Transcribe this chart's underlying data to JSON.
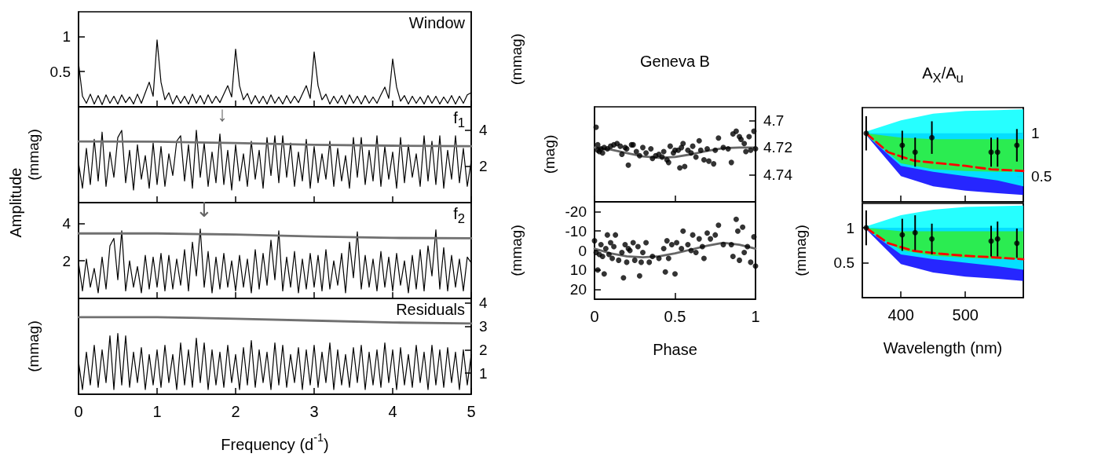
{
  "chart_data": [
    {
      "type": "line",
      "title": "Window",
      "y2label": "(mmag)",
      "xlim": [
        0,
        5
      ],
      "xticks": [
        0,
        1,
        2,
        3,
        4,
        5
      ],
      "ylim": [
        0,
        1.35
      ],
      "yticks": [
        0.5,
        1
      ],
      "grid": false,
      "tick_labels": "y",
      "x": [
        0,
        0.05,
        0.1,
        0.15,
        0.2,
        0.25,
        0.3,
        0.35,
        0.4,
        0.45,
        0.5,
        0.55,
        0.6,
        0.65,
        0.7,
        0.75,
        0.8,
        0.85,
        0.9,
        0.95,
        1,
        1.05,
        1.1,
        1.15,
        1.2,
        1.25,
        1.3,
        1.35,
        1.4,
        1.45,
        1.5,
        1.55,
        1.6,
        1.65,
        1.7,
        1.75,
        1.8,
        1.85,
        1.9,
        1.95,
        2,
        2.05,
        2.1,
        2.15,
        2.2,
        2.25,
        2.3,
        2.35,
        2.4,
        2.45,
        2.5,
        2.55,
        2.6,
        2.65,
        2.7,
        2.75,
        2.8,
        2.85,
        2.9,
        2.95,
        3,
        3.05,
        3.1,
        3.15,
        3.2,
        3.25,
        3.3,
        3.35,
        3.4,
        3.45,
        3.5,
        3.55,
        3.6,
        3.65,
        3.7,
        3.75,
        3.8,
        3.85,
        3.9,
        3.95,
        4,
        4.05,
        4.1,
        4.15,
        4.2,
        4.25,
        4.3,
        4.35,
        4.4,
        4.45,
        4.5,
        4.55,
        4.6,
        4.65,
        4.7,
        4.75,
        4.8,
        4.85,
        4.9,
        4.95,
        5
      ],
      "series": [
        {
          "color": "#000000",
          "marker": "none",
          "values": [
            0.62,
            0.15,
            0.05,
            0.18,
            0.04,
            0.16,
            0.03,
            0.17,
            0.05,
            0.15,
            0.04,
            0.17,
            0.06,
            0.14,
            0.04,
            0.18,
            0.05,
            0.2,
            0.35,
            0.15,
            0.95,
            0.35,
            0.1,
            0.2,
            0.04,
            0.16,
            0.05,
            0.15,
            0.04,
            0.18,
            0.05,
            0.16,
            0.04,
            0.17,
            0.05,
            0.15,
            0.06,
            0.18,
            0.3,
            0.14,
            0.82,
            0.3,
            0.1,
            0.19,
            0.04,
            0.16,
            0.05,
            0.15,
            0.04,
            0.17,
            0.05,
            0.14,
            0.04,
            0.16,
            0.05,
            0.15,
            0.06,
            0.18,
            0.3,
            0.12,
            0.78,
            0.3,
            0.1,
            0.18,
            0.04,
            0.15,
            0.05,
            0.16,
            0.04,
            0.17,
            0.05,
            0.15,
            0.04,
            0.16,
            0.05,
            0.14,
            0.05,
            0.17,
            0.28,
            0.12,
            0.68,
            0.28,
            0.08,
            0.16,
            0.04,
            0.15,
            0.05,
            0.14,
            0.04,
            0.16,
            0.05,
            0.15,
            0.04,
            0.14,
            0.05,
            0.16,
            0.04,
            0.15,
            0.05,
            0.17,
            0.2
          ]
        }
      ]
    },
    {
      "type": "line",
      "title": "f$_{1}$",
      "ylabel": "(mmag)",
      "xlim": [
        0,
        5
      ],
      "xticks": [
        0,
        1,
        2,
        3,
        4,
        5
      ],
      "y2lim": [
        0,
        5.3
      ],
      "y2ticks": [
        2,
        4
      ],
      "grid": false,
      "tick_labels": "y",
      "annotations": [
        "Amplitude",
        "↓"
      ],
      "x": [
        0,
        0.05,
        0.1,
        0.15,
        0.2,
        0.25,
        0.3,
        0.35,
        0.4,
        0.45,
        0.5,
        0.55,
        0.6,
        0.65,
        0.7,
        0.75,
        0.8,
        0.85,
        0.9,
        0.95,
        1,
        1.05,
        1.1,
        1.15,
        1.2,
        1.25,
        1.3,
        1.35,
        1.4,
        1.45,
        1.5,
        1.55,
        1.6,
        1.65,
        1.7,
        1.75,
        1.8,
        1.85,
        1.9,
        1.95,
        2,
        2.05,
        2.1,
        2.15,
        2.2,
        2.25,
        2.3,
        2.35,
        2.4,
        2.45,
        2.5,
        2.55,
        2.6,
        2.65,
        2.7,
        2.75,
        2.8,
        2.85,
        2.9,
        2.95,
        3,
        3.05,
        3.1,
        3.15,
        3.2,
        3.25,
        3.3,
        3.35,
        3.4,
        3.45,
        3.5,
        3.55,
        3.6,
        3.65,
        3.7,
        3.75,
        3.8,
        3.85,
        3.9,
        3.95,
        4,
        4.05,
        4.1,
        4.15,
        4.2,
        4.25,
        4.3,
        4.35,
        4.4,
        4.45,
        4.5,
        4.55,
        4.6,
        4.65,
        4.7,
        4.75,
        4.8,
        4.85,
        4.9,
        4.95,
        5
      ],
      "series": [
        {
          "color": "#000000",
          "marker": "none",
          "axis": "y2",
          "values": [
            2.2,
            0.8,
            3.0,
            1.0,
            3.5,
            1.2,
            3.9,
            0.9,
            2.8,
            1.4,
            3.6,
            4.0,
            1.1,
            2.9,
            0.7,
            3.2,
            1.3,
            2.6,
            0.8,
            3.3,
            1.0,
            3.1,
            0.9,
            2.7,
            1.5,
            3.4,
            3.7,
            1.2,
            3.2,
            0.8,
            4.0,
            1.4,
            3.3,
            0.9,
            2.8,
            1.1,
            3.8,
            1.0,
            2.9,
            0.7,
            3.2,
            1.2,
            2.7,
            0.9,
            3.4,
            1.3,
            2.9,
            0.8,
            3.6,
            1.5,
            3.7,
            1.1,
            3.7,
            1.4,
            3.3,
            0.9,
            2.8,
            1.2,
            3.5,
            0.8,
            3.1,
            1.1,
            2.7,
            1.3,
            3.4,
            0.9,
            3.0,
            1.2,
            2.6,
            0.8,
            3.6,
            1.4,
            3.6,
            1.0,
            2.9,
            1.2,
            3.7,
            0.9,
            3.1,
            1.3,
            2.8,
            0.8,
            3.6,
            1.1,
            3.2,
            1.4,
            2.7,
            0.9,
            3.7,
            1.2,
            3.4,
            1.0,
            3.7,
            0.8,
            2.9,
            1.3,
            3.7,
            1.1,
            3.0,
            0.9,
            2.3
          ]
        },
        {
          "color": "#707070",
          "marker": "none",
          "axis": "y2",
          "x": [
            0,
            1,
            2,
            3,
            4,
            5
          ],
          "values": [
            3.38,
            3.37,
            3.3,
            3.2,
            3.15,
            3.12
          ]
        }
      ]
    },
    {
      "type": "line",
      "title": "f$_{2}$",
      "y2label": "(mmag)",
      "xlim": [
        0,
        5
      ],
      "xticks": [
        0,
        1,
        2,
        3,
        4,
        5
      ],
      "ylim": [
        0,
        5.1
      ],
      "yticks": [
        2,
        4
      ],
      "grid": false,
      "tick_labels": "y",
      "annotations": [
        {
          "text": "↓",
          "x": 1.6,
          "y": 3.7
        }
      ],
      "x": [
        0,
        0.05,
        0.1,
        0.15,
        0.2,
        0.25,
        0.3,
        0.35,
        0.4,
        0.45,
        0.5,
        0.55,
        0.6,
        0.65,
        0.7,
        0.75,
        0.8,
        0.85,
        0.9,
        0.95,
        1,
        1.05,
        1.1,
        1.15,
        1.2,
        1.25,
        1.3,
        1.35,
        1.4,
        1.45,
        1.5,
        1.55,
        1.6,
        1.65,
        1.7,
        1.75,
        1.8,
        1.85,
        1.9,
        1.95,
        2,
        2.05,
        2.1,
        2.15,
        2.2,
        2.25,
        2.3,
        2.35,
        2.4,
        2.45,
        2.5,
        2.55,
        2.6,
        2.65,
        2.7,
        2.75,
        2.8,
        2.85,
        2.9,
        2.95,
        3,
        3.05,
        3.1,
        3.15,
        3.2,
        3.25,
        3.3,
        3.35,
        3.4,
        3.45,
        3.5,
        3.55,
        3.6,
        3.65,
        3.7,
        3.75,
        3.8,
        3.85,
        3.9,
        3.95,
        4,
        4.05,
        4.1,
        4.15,
        4.2,
        4.25,
        4.3,
        4.35,
        4.4,
        4.45,
        4.5,
        4.55,
        4.6,
        4.65,
        4.7,
        4.75,
        4.8,
        4.85,
        4.9,
        4.95,
        5
      ],
      "series": [
        {
          "color": "#000000",
          "marker": "none",
          "values": [
            1.9,
            0.4,
            2.1,
            0.6,
            1.6,
            0.3,
            2.2,
            0.5,
            2.8,
            3.2,
            1.0,
            3.6,
            0.4,
            2.0,
            0.6,
            1.7,
            0.3,
            2.3,
            0.5,
            2.2,
            0.6,
            2.4,
            0.4,
            2.3,
            0.5,
            2.1,
            0.7,
            2.6,
            0.4,
            3.0,
            1.2,
            3.7,
            0.6,
            2.5,
            0.3,
            2.2,
            0.5,
            2.4,
            0.6,
            2.0,
            0.4,
            2.3,
            0.6,
            2.1,
            0.3,
            2.6,
            0.5,
            2.4,
            0.7,
            3.1,
            1.0,
            3.6,
            0.4,
            2.2,
            0.6,
            2.5,
            0.3,
            2.1,
            0.5,
            2.4,
            0.6,
            2.3,
            0.4,
            2.6,
            0.5,
            2.0,
            0.7,
            2.4,
            0.3,
            3.0,
            1.1,
            3.55,
            0.5,
            2.3,
            0.6,
            2.1,
            0.4,
            2.5,
            0.6,
            2.2,
            0.4,
            2.4,
            0.7,
            2.0,
            0.3,
            2.3,
            0.5,
            2.6,
            0.4,
            2.8,
            1.2,
            3.65,
            0.5,
            2.7,
            0.4,
            2.3,
            0.6,
            2.1,
            0.4,
            2.2,
            1.9
          ]
        },
        {
          "color": "#707070",
          "marker": "none",
          "x": [
            0,
            1,
            2,
            3,
            4,
            5
          ],
          "values": [
            3.46,
            3.46,
            3.4,
            3.3,
            3.22,
            3.2
          ]
        }
      ]
    },
    {
      "type": "line",
      "title": "Residuals",
      "ylabel": "(mmag)",
      "xlabel": "Frequency (d$^{-1}$)",
      "xlim": [
        0,
        5
      ],
      "xticks": [
        0,
        1,
        2,
        3,
        4,
        5
      ],
      "y2lim": [
        0.1,
        4.2
      ],
      "y2ticks": [
        1,
        2,
        3,
        4
      ],
      "grid": false,
      "x": [
        0,
        0.05,
        0.1,
        0.15,
        0.2,
        0.25,
        0.3,
        0.35,
        0.4,
        0.45,
        0.5,
        0.55,
        0.6,
        0.65,
        0.7,
        0.75,
        0.8,
        0.85,
        0.9,
        0.95,
        1,
        1.05,
        1.1,
        1.15,
        1.2,
        1.25,
        1.3,
        1.35,
        1.4,
        1.45,
        1.5,
        1.55,
        1.6,
        1.65,
        1.7,
        1.75,
        1.8,
        1.85,
        1.9,
        1.95,
        2,
        2.05,
        2.1,
        2.15,
        2.2,
        2.25,
        2.3,
        2.35,
        2.4,
        2.45,
        2.5,
        2.55,
        2.6,
        2.65,
        2.7,
        2.75,
        2.8,
        2.85,
        2.9,
        2.95,
        3,
        3.05,
        3.1,
        3.15,
        3.2,
        3.25,
        3.3,
        3.35,
        3.4,
        3.45,
        3.5,
        3.55,
        3.6,
        3.65,
        3.7,
        3.75,
        3.8,
        3.85,
        3.9,
        3.95,
        4,
        4.05,
        4.1,
        4.15,
        4.2,
        4.25,
        4.3,
        4.35,
        4.4,
        4.45,
        4.5,
        4.55,
        4.6,
        4.65,
        4.7,
        4.75,
        4.8,
        4.85,
        4.9,
        4.95,
        5
      ],
      "series": [
        {
          "color": "#000000",
          "marker": "none",
          "axis": "y2",
          "values": [
            1.5,
            0.3,
            1.9,
            0.5,
            2.2,
            0.4,
            2.0,
            0.6,
            2.6,
            0.3,
            2.7,
            0.5,
            2.6,
            0.4,
            1.9,
            0.6,
            2.1,
            0.3,
            1.8,
            0.5,
            2.0,
            0.4,
            2.2,
            0.6,
            1.8,
            0.3,
            2.3,
            0.5,
            2.0,
            0.4,
            2.5,
            0.6,
            2.3,
            0.3,
            2.0,
            0.5,
            1.9,
            0.4,
            2.2,
            0.6,
            1.8,
            0.3,
            2.1,
            0.5,
            2.4,
            0.4,
            2.0,
            0.6,
            1.9,
            0.3,
            2.3,
            0.5,
            2.2,
            0.4,
            1.8,
            0.6,
            2.1,
            0.3,
            2.0,
            0.5,
            2.2,
            0.4,
            1.9,
            0.6,
            2.3,
            0.3,
            2.0,
            0.5,
            1.8,
            0.4,
            2.1,
            0.6,
            2.2,
            0.3,
            1.9,
            0.5,
            2.0,
            0.4,
            2.3,
            0.6,
            2.0,
            0.3,
            2.1,
            0.5,
            1.8,
            0.4,
            2.2,
            0.6,
            1.9,
            0.3,
            2.2,
            0.5,
            2.0,
            0.4,
            2.1,
            0.6,
            1.9,
            0.3,
            2.0,
            0.5,
            1.8
          ]
        },
        {
          "color": "#707070",
          "marker": "none",
          "axis": "y2",
          "x": [
            0,
            1,
            2,
            3,
            4,
            5
          ],
          "values": [
            3.4,
            3.4,
            3.33,
            3.25,
            3.17,
            3.13
          ]
        }
      ]
    },
    {
      "type": "scatter",
      "title": "Geneva B",
      "ylabel": "(mag)",
      "xlim": [
        0,
        1
      ],
      "xticks": [
        0,
        0.5,
        1
      ],
      "y2lim": [
        4.76,
        4.69
      ],
      "y2ticks": [
        4.7,
        4.72,
        4.74
      ],
      "grid": false,
      "tick_labels": "y",
      "series": [
        {
          "color": "#000000",
          "marker": "circle",
          "axis": "y2",
          "x": [
            0.01,
            0.02,
            0.02,
            0.03,
            0.04,
            0.05,
            0.06,
            0.08,
            0.1,
            0.12,
            0.14,
            0.16,
            0.17,
            0.19,
            0.2,
            0.21,
            0.23,
            0.24,
            0.26,
            0.28,
            0.3,
            0.32,
            0.35,
            0.36,
            0.38,
            0.4,
            0.42,
            0.43,
            0.45,
            0.46,
            0.47,
            0.49,
            0.5,
            0.52,
            0.53,
            0.54,
            0.55,
            0.56,
            0.58,
            0.6,
            0.61,
            0.63,
            0.65,
            0.66,
            0.68,
            0.7,
            0.71,
            0.74,
            0.75,
            0.77,
            0.8,
            0.83,
            0.85,
            0.86,
            0.88,
            0.9,
            0.91,
            0.93,
            0.94,
            0.96,
            0.97,
            0.99,
            1.0
          ],
          "values": [
            4.705,
            4.718,
            4.722,
            4.723,
            4.721,
            4.724,
            4.72,
            4.721,
            4.719,
            4.718,
            4.717,
            4.719,
            4.725,
            4.72,
            4.721,
            4.733,
            4.718,
            4.718,
            4.723,
            4.726,
            4.72,
            4.724,
            4.721,
            4.728,
            4.726,
            4.725,
            4.727,
            4.723,
            4.729,
            4.731,
            4.719,
            4.724,
            4.722,
            4.722,
            4.735,
            4.72,
            4.717,
            4.734,
            4.722,
            4.724,
            4.719,
            4.727,
            4.715,
            4.722,
            4.729,
            4.721,
            4.73,
            4.732,
            4.722,
            4.713,
            4.72,
            4.721,
            4.731,
            4.71,
            4.708,
            4.712,
            4.714,
            4.717,
            4.723,
            4.712,
            4.722,
            4.708,
            4.721
          ]
        },
        {
          "type": "line",
          "color": "#666666",
          "marker": "none",
          "axis": "y2",
          "x": [
            0,
            0.1,
            0.2,
            0.3,
            0.4,
            0.5,
            0.6,
            0.7,
            0.8,
            0.9,
            1
          ],
          "values": [
            4.72,
            4.7215,
            4.724,
            4.7265,
            4.7275,
            4.727,
            4.725,
            4.7225,
            4.7205,
            4.72,
            4.72
          ]
        }
      ]
    },
    {
      "type": "scatter",
      "y2label": "(mmag)",
      "xlabel": "Phase",
      "xlim": [
        0,
        1
      ],
      "xticks": [
        0,
        0.5,
        1
      ],
      "ylim": [
        25,
        -25
      ],
      "yticks": [
        -20,
        -10,
        0,
        10,
        20
      ],
      "grid": false,
      "series": [
        {
          "color": "#000000",
          "marker": "circle",
          "x": [
            0.0,
            0.01,
            0.02,
            0.03,
            0.04,
            0.05,
            0.06,
            0.07,
            0.08,
            0.09,
            0.1,
            0.11,
            0.12,
            0.13,
            0.15,
            0.17,
            0.18,
            0.19,
            0.2,
            0.21,
            0.22,
            0.24,
            0.25,
            0.27,
            0.28,
            0.29,
            0.3,
            0.32,
            0.34,
            0.36,
            0.4,
            0.43,
            0.44,
            0.45,
            0.46,
            0.48,
            0.5,
            0.51,
            0.54,
            0.55,
            0.58,
            0.6,
            0.61,
            0.63,
            0.65,
            0.67,
            0.68,
            0.7,
            0.72,
            0.75,
            0.77,
            0.8,
            0.85,
            0.86,
            0.88,
            0.89,
            0.9,
            0.92,
            0.93,
            0.95,
            0.97,
            0.99,
            1.0
          ],
          "values": [
            -5,
            1,
            10,
            2,
            -3,
            3,
            12,
            -1,
            -8,
            2,
            -4,
            4,
            -2,
            -8,
            5,
            1,
            14,
            -3,
            6,
            -1,
            0,
            -4,
            5,
            -2,
            13,
            6,
            1,
            -4,
            6,
            3,
            4,
            -1,
            11,
            -5,
            4,
            -3,
            12,
            -4,
            -1,
            -10,
            -3,
            0,
            -8,
            1,
            -6,
            -2,
            4,
            -9,
            -6,
            -8,
            -13,
            -3,
            -3,
            3,
            -16,
            -10,
            5,
            -12,
            1,
            -2,
            6,
            -7,
            8
          ]
        },
        {
          "type": "line",
          "color": "#666666",
          "marker": "none",
          "x": [
            0,
            0.1,
            0.2,
            0.3,
            0.4,
            0.5,
            0.6,
            0.7,
            0.8,
            0.9,
            1
          ],
          "values": [
            -1,
            1.5,
            3,
            3.5,
            3,
            1.5,
            -0.5,
            -2.5,
            -4,
            -3,
            -1
          ]
        }
      ]
    },
    {
      "type": "scatter",
      "title": "A$_{X}$/A$_{u}$",
      "xlim": [
        340,
        590
      ],
      "xticks": [
        400,
        500
      ],
      "y2lim": [
        0.2,
        1.3
      ],
      "y2ticks": [
        0.5,
        1
      ],
      "grid": false,
      "tick_labels": "y",
      "series": [
        {
          "type": "line",
          "color": "#0000ff",
          "axis": "y2",
          "x": [
            346,
            400,
            450,
            500,
            550,
            590
          ],
          "values": [
            null,
            null,
            null,
            null,
            null,
            null
          ],
          "lower": [
            0.98,
            0.5,
            0.38,
            0.33,
            0.3,
            0.28
          ],
          "upper": [
            1.0,
            1.0,
            1.0,
            1.0,
            1.0,
            1.0
          ]
        },
        {
          "type": "line",
          "color": "#00ffff",
          "axis": "y2",
          "x": [
            346,
            400,
            450,
            500,
            550,
            590
          ],
          "values": [
            null,
            null,
            null,
            null,
            null,
            null
          ],
          "lower": [
            0.98,
            0.62,
            0.55,
            0.5,
            0.45,
            0.38
          ],
          "upper": [
            1.02,
            1.15,
            1.23,
            1.26,
            1.27,
            1.28
          ]
        },
        {
          "type": "line",
          "color": "#33ee33",
          "axis": "y2",
          "x": [
            346,
            400,
            450,
            500,
            550,
            590
          ],
          "values": [
            null,
            null,
            null,
            null,
            null,
            null
          ],
          "lower": [
            0.98,
            0.65,
            0.58,
            0.56,
            0.55,
            0.55
          ],
          "upper": [
            1.0,
            0.95,
            0.93,
            0.93,
            0.93,
            0.93
          ]
        },
        {
          "type": "line",
          "color": "#ff0000",
          "line_style": "dashed",
          "marker": "none",
          "axis": "y2",
          "x": [
            346,
            380,
            420,
            460,
            500,
            540,
            590
          ],
          "values": [
            1.0,
            0.78,
            0.68,
            0.65,
            0.62,
            0.58,
            0.56
          ]
        },
        {
          "color": "#000000",
          "marker": "circle",
          "axis": "y2",
          "x": [
            346,
            402,
            422,
            448,
            540,
            550,
            580
          ],
          "values": [
            1.0,
            0.86,
            0.78,
            0.95,
            0.78,
            0.78,
            0.86
          ],
          "errors": [
            0.2,
            0.17,
            0.17,
            0.19,
            0.17,
            0.17,
            0.19
          ]
        }
      ]
    },
    {
      "type": "scatter",
      "xlabel": "Wavelength (nm)",
      "xlim": [
        340,
        590
      ],
      "xticks": [
        400,
        500
      ],
      "ylim": [
        0,
        1.35
      ],
      "yticks": [
        0.5,
        1
      ],
      "grid": false,
      "series": [
        {
          "type": "line",
          "color": "#0000ff",
          "x": [
            346,
            400,
            450,
            500,
            550,
            590
          ],
          "values": [
            null,
            null,
            null,
            null,
            null,
            null
          ],
          "lower": [
            0.98,
            0.48,
            0.36,
            0.3,
            0.27,
            0.24
          ],
          "upper": [
            1.0,
            1.0,
            1.0,
            1.0,
            1.0,
            1.0
          ]
        },
        {
          "type": "line",
          "color": "#00ffff",
          "x": [
            346,
            400,
            450,
            500,
            550,
            590
          ],
          "values": [
            null,
            null,
            null,
            null,
            null,
            null
          ],
          "lower": [
            0.98,
            0.62,
            0.55,
            0.5,
            0.45,
            0.4
          ],
          "upper": [
            1.02,
            1.18,
            1.26,
            1.3,
            1.31,
            1.32
          ]
        },
        {
          "type": "line",
          "color": "#33ee33",
          "x": [
            346,
            400,
            450,
            500,
            550,
            590
          ],
          "values": [
            null,
            null,
            null,
            null,
            null,
            null
          ],
          "lower": [
            0.98,
            0.68,
            0.6,
            0.57,
            0.55,
            0.55
          ],
          "upper": [
            1.0,
            0.95,
            0.95,
            0.95,
            0.95,
            0.95
          ]
        },
        {
          "type": "line",
          "color": "#ff0000",
          "line_style": "dashed",
          "marker": "none",
          "x": [
            346,
            380,
            420,
            460,
            500,
            540,
            590
          ],
          "values": [
            1.0,
            0.78,
            0.67,
            0.63,
            0.6,
            0.58,
            0.55
          ]
        },
        {
          "color": "#000000",
          "marker": "circle",
          "x": [
            346,
            402,
            422,
            448,
            540,
            550,
            580
          ],
          "values": [
            1.0,
            0.9,
            0.93,
            0.84,
            0.81,
            0.84,
            0.78
          ],
          "errors": [
            0.25,
            0.23,
            0.25,
            0.22,
            0.22,
            0.25,
            0.21
          ]
        }
      ]
    }
  ]
}
